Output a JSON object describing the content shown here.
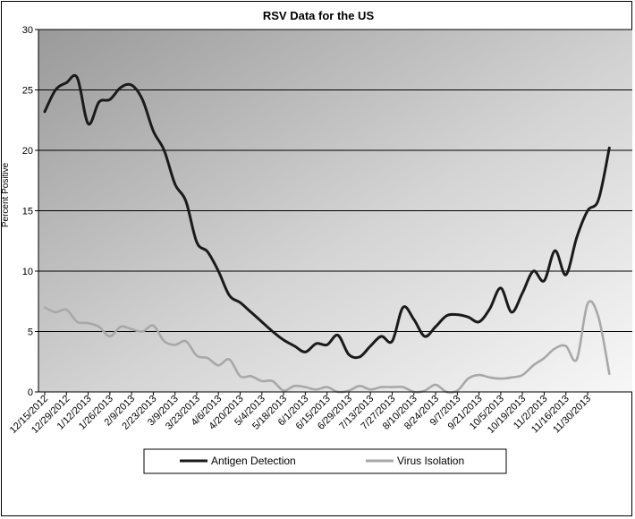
{
  "chart_data": {
    "type": "line",
    "title": "RSV Data for the US",
    "xlabel": "",
    "ylabel": "Percent Positive",
    "ylim": [
      0,
      30
    ],
    "yticks": [
      0,
      5,
      10,
      15,
      20,
      25,
      30
    ],
    "grid": true,
    "legend_position": "bottom",
    "x_tick_labels": [
      "12/15/2012",
      "12/29/2012",
      "1/12/2013",
      "1/26/2013",
      "2/9/2013",
      "2/23/2013",
      "3/9/2013",
      "3/23/2013",
      "4/6/2013",
      "4/20/2013",
      "5/4/2013",
      "5/18/2013",
      "6/1/2013",
      "6/15/2013",
      "6/29/2013",
      "7/13/2013",
      "7/27/2013",
      "8/10/2013",
      "8/24/2013",
      "9/7/2013",
      "9/21/2013",
      "10/5/2013",
      "10/19/2013",
      "11/2/2013",
      "11/16/2013",
      "11/30/2013"
    ],
    "x": [
      "12/15/2012",
      "12/22/2012",
      "12/29/2012",
      "1/5/2013",
      "1/12/2013",
      "1/19/2013",
      "1/26/2013",
      "2/2/2013",
      "2/9/2013",
      "2/16/2013",
      "2/23/2013",
      "3/2/2013",
      "3/9/2013",
      "3/16/2013",
      "3/23/2013",
      "3/30/2013",
      "4/6/2013",
      "4/13/2013",
      "4/20/2013",
      "4/27/2013",
      "5/4/2013",
      "5/11/2013",
      "5/18/2013",
      "5/25/2013",
      "6/1/2013",
      "6/8/2013",
      "6/15/2013",
      "6/22/2013",
      "6/29/2013",
      "7/6/2013",
      "7/13/2013",
      "7/20/2013",
      "7/27/2013",
      "8/3/2013",
      "8/10/2013",
      "8/17/2013",
      "8/24/2013",
      "8/31/2013",
      "9/7/2013",
      "9/14/2013",
      "9/21/2013",
      "9/28/2013",
      "10/5/2013",
      "10/12/2013",
      "10/19/2013",
      "10/26/2013",
      "11/2/2013",
      "11/9/2013",
      "11/16/2013",
      "11/23/2013",
      "11/30/2013",
      "12/7/2013",
      "12/14/2013"
    ],
    "series": [
      {
        "name": "Antigen Detection",
        "color": "#1a1a1a",
        "values": [
          23.2,
          25.0,
          25.6,
          26.0,
          22.2,
          24.0,
          24.2,
          25.2,
          25.4,
          24.2,
          21.6,
          20.0,
          17.2,
          15.8,
          12.4,
          11.6,
          10.0,
          8.0,
          7.4,
          6.6,
          5.8,
          5.0,
          4.3,
          3.8,
          3.3,
          4.0,
          3.9,
          4.7,
          3.1,
          2.9,
          3.8,
          4.6,
          4.2,
          7.0,
          6.0,
          4.6,
          5.4,
          6.3,
          6.4,
          6.2,
          5.8,
          6.9,
          8.6,
          6.6,
          8.2,
          10.0,
          9.2,
          11.7,
          9.7,
          12.8,
          15.0,
          15.9,
          20.2
        ]
      },
      {
        "name": "Virus Isolation",
        "color": "#a8a8a8",
        "values": [
          7.0,
          6.6,
          6.8,
          5.8,
          5.7,
          5.4,
          4.6,
          5.4,
          5.2,
          5.0,
          5.5,
          4.2,
          3.9,
          4.2,
          3.0,
          2.8,
          2.2,
          2.7,
          1.3,
          1.3,
          0.9,
          0.9,
          0.1,
          0.5,
          0.4,
          0.2,
          0.4,
          0.0,
          0.1,
          0.5,
          0.2,
          0.4,
          0.4,
          0.4,
          0.0,
          0.1,
          0.6,
          0.0,
          0.1,
          1.1,
          1.4,
          1.2,
          1.1,
          1.2,
          1.4,
          2.2,
          2.8,
          3.6,
          3.8,
          2.7,
          7.3,
          6.2,
          1.5
        ]
      }
    ]
  }
}
